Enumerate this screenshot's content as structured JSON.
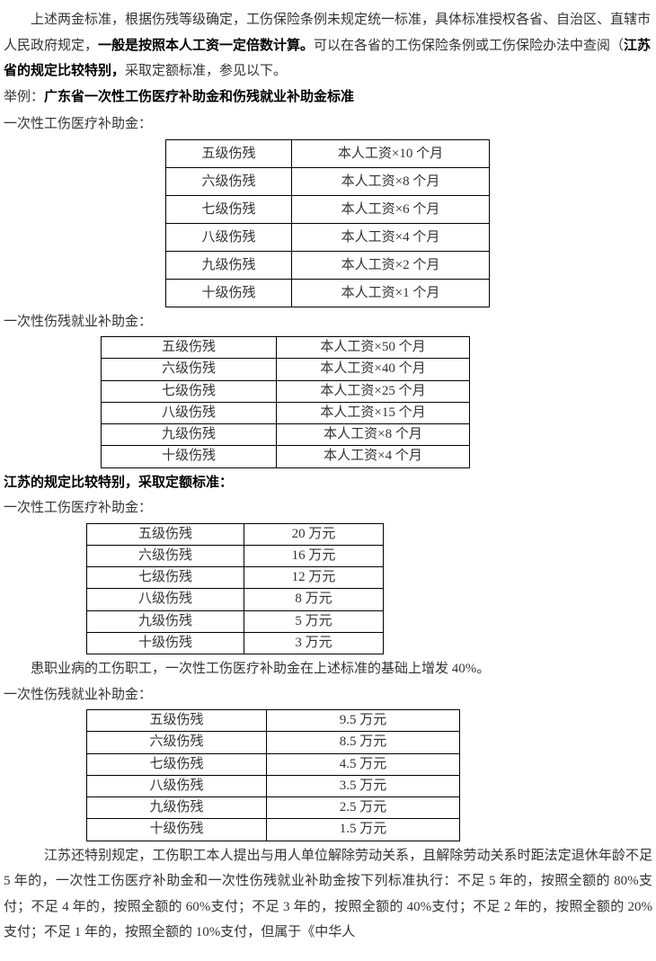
{
  "p1_a": "上述两金标准，根据伤残等级确定，工伤保险条例未规定统一标准，具体标准授权各省、自治区、直辖市人民政府规定，",
  "p1_b": "一般是按照本人工资一定倍数计算。",
  "p1_c": "可以在各省的工伤保险条例或工伤保险办法中查阅（",
  "p1_d": "江苏省的规定比较特别",
  "p1_d2": "，",
  "p1_e": "采取定额标准，参见以下。",
  "p2_a": "举例：",
  "p2_b": "广东省一次性工伤医疗补助金和伤残就业补助金标准",
  "h_med": "一次性工伤医疗补助金：",
  "h_emp": "一次性伤残就业补助金：",
  "levels": [
    "五级伤残",
    "六级伤残",
    "七级伤残",
    "八级伤残",
    "九级伤残",
    "十级伤残"
  ],
  "gd_med": [
    "本人工资×10 个月",
    "本人工资×8 个月",
    "本人工资×6 个月",
    "本人工资×4 个月",
    "本人工资×2 个月",
    "本人工资×1 个月"
  ],
  "gd_emp": [
    "本人工资×50 个月",
    "本人工资×40 个月",
    "本人工资×25 个月",
    "本人工资×15 个月",
    "本人工资×8 个月",
    "本人工资×4 个月"
  ],
  "js_title": "江苏的规定比较特别，采取定额标准：",
  "js_med": [
    "20 万元",
    "16 万元",
    "12 万元",
    "8 万元",
    "5 万元",
    "3 万元"
  ],
  "js_note": "患职业病的工伤职工，一次性工伤医疗补助金在上述标准的基础上增发 40%。",
  "js_emp": [
    "9.5 万元",
    "8.5 万元",
    "4.5 万元",
    "3.5 万元",
    "2.5 万元",
    "1.5 万元"
  ],
  "p_last": "江苏还特别规定，工伤职工本人提出与用人单位解除劳动关系，且解除劳动关系时距法定退休年龄不足 5 年的，一次性工伤医疗补助金和一次性伤残就业补助金按下列标准执行：不足 5 年的，按照全额的 80%支付；不足 4 年的，按照全额的 60%支付；不足 3 年的，按照全额的 40%支付；不足 2 年的，按照全额的 20%支付；不足 1 年的，按照全额的 10%支付，但属于《中华人"
}
